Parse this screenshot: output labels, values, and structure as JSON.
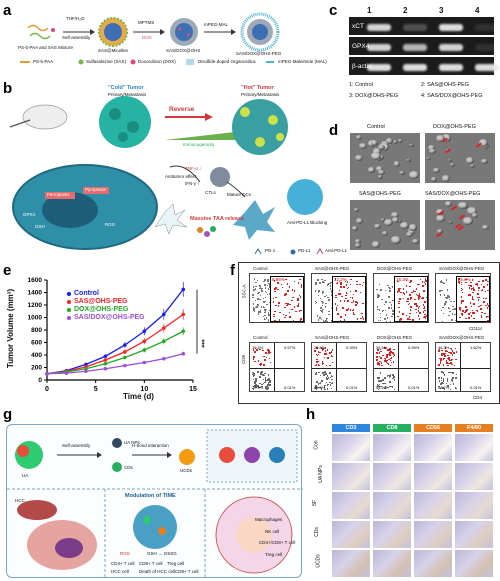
{
  "panels": {
    "a": "a",
    "b": "b",
    "c": "c",
    "d": "d",
    "e": "e",
    "f": "f",
    "g": "g",
    "h": "h"
  },
  "panel_a": {
    "start_label": "PS-b-PAA and SAS Mixture",
    "arrow1": "THF/H₂O",
    "arrow1_sub": "Self-assembly",
    "mid_label": "SAS@Micelles",
    "arrow2": "MPTMS",
    "arrow2_sub": "DOX",
    "mid2_label": "SAS/DOX@OHS",
    "arrow3": "mPEG-MAL",
    "end_label": "SAS/DOX@OHS-PEG",
    "legend": [
      "PS-b-PAA",
      "Sulfasalazine (SAS)",
      "Doxorubicin (DOX)",
      "Disulfide-doped Organosilica",
      "mPEG-Maleimide (MAL)"
    ]
  },
  "panel_b": {
    "cold": "\"Cold\" Tumor",
    "cold_sub": "Primary/Metastasis",
    "hot": "\"Hot\" Tumor",
    "hot_sub": "Primary/Metastasis",
    "reverse": "Reverse",
    "immunogenicity": "Immunogenicity",
    "antitumor": "Antitumor effect",
    "tnf": "TNF-α ↑",
    "ifn": "IFN-γ ↑",
    "ctls": "CTLs",
    "mature_dcs": "Mature DCs",
    "anti_pdl1": "Anti-PD-L1 Blocking",
    "taa": "Massive TAA release",
    "legend": [
      "PD-1",
      "PD-L1",
      "Anti-PD-L1"
    ],
    "cell_labels": [
      "Ferroptosis",
      "Pyroptosis",
      "GPX4",
      "GSH",
      "ROS"
    ]
  },
  "panel_c": {
    "lanes": [
      "1",
      "2",
      "3",
      "4"
    ],
    "rows": [
      "xCT",
      "GPX4",
      "β-actin"
    ],
    "legend": [
      "1: Control",
      "2: SAS@OHS-PEG",
      "3: DOX@OHS-PEG",
      "4: SAS/DOX@OHS-PEG"
    ],
    "band_intensity": {
      "xCT": [
        0.9,
        0.25,
        0.95,
        0.1
      ],
      "GPX4": [
        0.9,
        0.75,
        0.9,
        0.1
      ],
      "beta_actin": [
        0.95,
        0.95,
        0.95,
        0.95
      ]
    }
  },
  "panel_d": {
    "titles": [
      "Control",
      "DOX@OHS-PEG",
      "SAS@OHS-PEG",
      "SAS/DOX@OHS-PEG"
    ]
  },
  "panel_e": {
    "ylabel": "Tumor Volume (mm³)",
    "xlabel": "Time (d)",
    "significance": "***",
    "legend_colors": [
      "#1a1aff",
      "#ff2020",
      "#22aa22",
      "#9b4fd6"
    ]
  },
  "chart_data": {
    "type": "line",
    "xlabel": "Time (d)",
    "ylabel": "Tumor Volume (mm³)",
    "xlim": [
      0,
      15
    ],
    "ylim": [
      0,
      1600
    ],
    "xticks": [
      "0",
      "5",
      "10",
      "15"
    ],
    "yticks": [
      "0",
      "200",
      "400",
      "600",
      "800",
      "1000",
      "1200",
      "1400",
      "1600"
    ],
    "x": [
      0,
      2,
      4,
      6,
      8,
      10,
      12,
      14
    ],
    "series": [
      {
        "name": "Control",
        "color": "#1a1aff",
        "values": [
          100,
          150,
          250,
          380,
          560,
          780,
          1050,
          1450
        ]
      },
      {
        "name": "SAS@OHS-PEG",
        "color": "#ff2020",
        "values": [
          100,
          140,
          210,
          320,
          450,
          620,
          830,
          1050
        ]
      },
      {
        "name": "DOX@OHS-PEG",
        "color": "#22aa22",
        "values": [
          100,
          130,
          180,
          260,
          360,
          480,
          620,
          780
        ]
      },
      {
        "name": "SAS/DOX@OHS-PEG",
        "color": "#9b4fd6",
        "values": [
          100,
          110,
          140,
          180,
          230,
          280,
          340,
          420
        ]
      }
    ]
  },
  "panel_f": {
    "row1_titles": [
      "Control",
      "SAS@OHS-PEG",
      "DOX@OHS-PEG",
      "SAS/DOX@OHS-PEG"
    ],
    "row1_values": [
      "8.98%",
      "12.2%",
      "15.3%",
      "26.8%"
    ],
    "row1_ylabel": "SSC-A",
    "row1_xlabel": "CD11c",
    "row2_titles": [
      "Control",
      "SAS@OHS-PEG",
      "DOX@OHS-PEG",
      "SAS/DOX@OHS-PEG"
    ],
    "row2_q_tl": [
      "19.5%",
      "25.6%",
      "35.5%",
      "46.3%"
    ],
    "row2_q_tr": [
      "0.57%",
      "0.93%",
      "0.99%",
      "1.62%"
    ],
    "row2_q_bl": [
      "79.9%",
      "64.5%",
      "54.5%",
      "48.7%"
    ],
    "row2_q_br": [
      "0.01%",
      "0.01%",
      "0.01%",
      "0.01%"
    ],
    "row2_ylabel": "CD8",
    "row2_xlabel": "CD4"
  },
  "panel_g": {
    "self_assembly": "Self-assembly",
    "ua": "UA",
    "ua_nps": "UA NPs",
    "cds": "CDs",
    "hbond": "H-bond interaction",
    "ucds": "UCDs",
    "hcc": "HCC",
    "modulation": "Modulation of TIME",
    "ros": "ROS",
    "gsh_gssg": "GSH → GSSG",
    "legend": [
      "CD4+ T cell",
      "CD8+ T cell",
      "Treg cell",
      "HCC cell",
      "Death of HCC cell",
      "CD8+ T cell"
    ],
    "right_labels": [
      "Macrophages",
      "NK cell",
      "CD4+/CD8+ T cell",
      "Treg cell"
    ]
  },
  "panel_h": {
    "col_headers": [
      "CD3",
      "CD8",
      "CD56",
      "F4/80"
    ],
    "col_colors": [
      "#2e86de",
      "#27ae60",
      "#e67e22",
      "#e67e22"
    ],
    "row_labels": [
      "Con",
      "UA NPs",
      "SF",
      "CDs",
      "UCDs"
    ]
  }
}
